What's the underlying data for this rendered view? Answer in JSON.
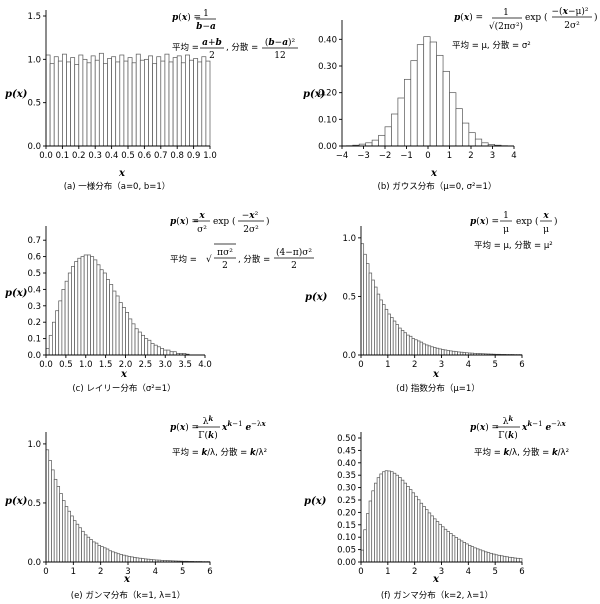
{
  "chart_data": [
    {
      "id": "a",
      "type": "bar",
      "ylabel": "p(x)",
      "xlabel": "x",
      "caption": "(a) 一様分布（a=0,  b=1）",
      "xlim": [
        0,
        1
      ],
      "ylim": [
        0,
        1.5
      ],
      "xticks": [
        "0.0",
        "0.1",
        "0.2",
        "0.3",
        "0.4",
        "0.5",
        "0.6",
        "0.7",
        "0.8",
        "0.9",
        "1.0"
      ],
      "yticks": [
        "0.0",
        "0.5",
        "1.0",
        "1.5"
      ],
      "formula": {
        "pdf": "p(x) = 1 / (b−a)",
        "mean_label": "平均",
        "mean": "(a+b)/2",
        "var_label": "分散",
        "var": "(b−a)²/12"
      },
      "x": [
        0.0125,
        0.0375,
        0.0625,
        0.0875,
        0.1125,
        0.1375,
        0.1625,
        0.1875,
        0.2125,
        0.2375,
        0.2625,
        0.2875,
        0.3125,
        0.3375,
        0.3625,
        0.3875,
        0.4125,
        0.4375,
        0.4625,
        0.4875,
        0.5125,
        0.5375,
        0.5625,
        0.5875,
        0.6125,
        0.6375,
        0.6625,
        0.6875,
        0.7125,
        0.7375,
        0.7625,
        0.7875,
        0.8125,
        0.8375,
        0.8625,
        0.8875,
        0.9125,
        0.9375,
        0.9625,
        0.9875
      ],
      "values": [
        1.05,
        0.95,
        1.03,
        0.98,
        1.06,
        0.97,
        1.02,
        0.94,
        1.05,
        1.0,
        0.96,
        1.04,
        0.99,
        1.07,
        0.95,
        1.01,
        1.03,
        0.97,
        1.05,
        0.98,
        1.02,
        0.96,
        1.06,
        0.99,
        1.0,
        1.04,
        0.95,
        1.03,
        0.98,
        1.06,
        0.97,
        1.02,
        1.04,
        0.96,
        1.05,
        0.99,
        1.01,
        0.97,
        1.03,
        0.98
      ]
    },
    {
      "id": "b",
      "type": "bar",
      "ylabel": "p(x)",
      "xlabel": "x",
      "caption": "(b) ガウス分布（μ=0,  σ²=1）",
      "xlim": [
        -4,
        4
      ],
      "ylim": [
        0,
        0.45
      ],
      "xticks": [
        "−4",
        "−3",
        "−2",
        "−1",
        "0",
        "1",
        "2",
        "3",
        "4"
      ],
      "yticks": [
        "0.00",
        "0.10",
        "0.20",
        "0.30",
        "0.40"
      ],
      "formula": {
        "pdf": "p(x) = 1/√(2πσ²) exp(−(x−μ)²/(2σ²))",
        "mean_label": "平均",
        "mean": "μ",
        "var_label": "分散",
        "var": "σ²"
      },
      "x": [
        -3.65,
        -3.35,
        -3.05,
        -2.75,
        -2.45,
        -2.15,
        -1.85,
        -1.55,
        -1.25,
        -0.95,
        -0.65,
        -0.35,
        -0.05,
        0.25,
        0.55,
        0.85,
        1.15,
        1.45,
        1.75,
        2.05,
        2.35,
        2.65,
        2.95,
        3.25,
        3.55
      ],
      "values": [
        0.001,
        0.003,
        0.007,
        0.012,
        0.022,
        0.04,
        0.072,
        0.12,
        0.18,
        0.25,
        0.32,
        0.38,
        0.41,
        0.39,
        0.34,
        0.28,
        0.2,
        0.14,
        0.086,
        0.05,
        0.026,
        0.012,
        0.006,
        0.003,
        0.001
      ]
    },
    {
      "id": "c",
      "type": "bar",
      "ylabel": "p(x)",
      "xlabel": "x",
      "caption": "(c) レイリー分布（σ²=1）",
      "xlim": [
        0,
        4
      ],
      "ylim": [
        0,
        0.75
      ],
      "xticks": [
        "0.0",
        "0.5",
        "1.0",
        "1.5",
        "2.0",
        "2.5",
        "3.0",
        "3.5",
        "4.0"
      ],
      "yticks": [
        "0.0",
        "0.1",
        "0.2",
        "0.3",
        "0.4",
        "0.5",
        "0.6",
        "0.7"
      ],
      "formula": {
        "pdf": "p(x) = x/σ² exp(−x²/(2σ²))",
        "mean_label": "平均",
        "mean": "√(πσ²/2)",
        "var_label": "分散",
        "var": "(4−π)σ²/2"
      },
      "x": [
        0.04,
        0.12,
        0.2,
        0.28,
        0.36,
        0.44,
        0.52,
        0.6,
        0.68,
        0.76,
        0.84,
        0.92,
        1.0,
        1.08,
        1.16,
        1.24,
        1.32,
        1.4,
        1.48,
        1.56,
        1.64,
        1.72,
        1.8,
        1.88,
        1.96,
        2.04,
        2.12,
        2.2,
        2.28,
        2.36,
        2.44,
        2.52,
        2.6,
        2.68,
        2.76,
        2.84,
        2.92,
        3.0,
        3.08,
        3.16,
        3.24,
        3.32,
        3.4,
        3.48,
        3.56
      ],
      "values": [
        0.04,
        0.12,
        0.2,
        0.27,
        0.33,
        0.4,
        0.45,
        0.5,
        0.54,
        0.57,
        0.59,
        0.6,
        0.61,
        0.61,
        0.6,
        0.58,
        0.55,
        0.52,
        0.5,
        0.46,
        0.43,
        0.39,
        0.36,
        0.32,
        0.29,
        0.26,
        0.22,
        0.19,
        0.16,
        0.14,
        0.12,
        0.1,
        0.09,
        0.07,
        0.06,
        0.05,
        0.04,
        0.03,
        0.03,
        0.02,
        0.02,
        0.01,
        0.01,
        0.01,
        0.005
      ]
    },
    {
      "id": "d",
      "type": "bar",
      "ylabel": "p(x)",
      "xlabel": "x",
      "caption": "(d) 指数分布（μ=1）",
      "xlim": [
        0,
        6
      ],
      "ylim": [
        0,
        1.05
      ],
      "xticks": [
        "0",
        "1",
        "2",
        "3",
        "4",
        "5",
        "6"
      ],
      "yticks": [
        "0.0",
        "0.5",
        "1.0"
      ],
      "formula": {
        "pdf": "p(x) = 1/μ exp(x/μ)",
        "mean_label": "平均",
        "mean": "μ",
        "var_label": "分散",
        "var": "μ²"
      },
      "x": [
        0.05,
        0.15,
        0.25,
        0.35,
        0.45,
        0.55,
        0.65,
        0.75,
        0.85,
        0.95,
        1.05,
        1.15,
        1.25,
        1.35,
        1.45,
        1.55,
        1.65,
        1.75,
        1.85,
        1.95,
        2.05,
        2.15,
        2.25,
        2.35,
        2.45,
        2.55,
        2.65,
        2.75,
        2.85,
        2.95,
        3.05,
        3.15,
        3.25,
        3.35,
        3.45,
        3.55,
        3.65,
        3.75,
        3.85,
        3.95,
        4.05,
        4.15,
        4.25,
        4.35,
        4.45,
        4.55,
        4.65,
        4.75,
        4.85,
        4.95,
        5.05,
        5.15,
        5.25,
        5.35,
        5.45,
        5.55,
        5.65,
        5.75,
        5.85,
        5.95
      ],
      "values": [
        0.95,
        0.86,
        0.78,
        0.7,
        0.64,
        0.58,
        0.52,
        0.47,
        0.43,
        0.39,
        0.35,
        0.32,
        0.29,
        0.26,
        0.23,
        0.21,
        0.19,
        0.17,
        0.16,
        0.14,
        0.13,
        0.12,
        0.11,
        0.095,
        0.086,
        0.078,
        0.07,
        0.064,
        0.058,
        0.052,
        0.047,
        0.043,
        0.039,
        0.035,
        0.032,
        0.029,
        0.026,
        0.024,
        0.021,
        0.019,
        0.017,
        0.016,
        0.014,
        0.013,
        0.012,
        0.011,
        0.01,
        0.009,
        0.008,
        0.007,
        0.006,
        0.006,
        0.005,
        0.005,
        0.004,
        0.004,
        0.004,
        0.003,
        0.003,
        0.003
      ]
    },
    {
      "id": "e",
      "type": "bar",
      "ylabel": "p(x)",
      "xlabel": "x",
      "caption": "(e) ガンマ分布（k=1,  λ=1）",
      "xlim": [
        0,
        6
      ],
      "ylim": [
        0,
        1.05
      ],
      "xticks": [
        "0",
        "1",
        "2",
        "3",
        "4",
        "5",
        "6"
      ],
      "yticks": [
        "0.0",
        "0.5",
        "1.0"
      ],
      "formula": {
        "pdf": "p(x) = λᵏ/Γ(k) xᵏ⁻¹ e⁻λˣ",
        "mean_label": "平均",
        "mean": "k/λ",
        "var_label": "分散",
        "var": "k/λ²"
      },
      "x": [
        0.05,
        0.15,
        0.25,
        0.35,
        0.45,
        0.55,
        0.65,
        0.75,
        0.85,
        0.95,
        1.05,
        1.15,
        1.25,
        1.35,
        1.45,
        1.55,
        1.65,
        1.75,
        1.85,
        1.95,
        2.05,
        2.15,
        2.25,
        2.35,
        2.45,
        2.55,
        2.65,
        2.75,
        2.85,
        2.95,
        3.05,
        3.15,
        3.25,
        3.35,
        3.45,
        3.55,
        3.65,
        3.75,
        3.85,
        3.95,
        4.05,
        4.15,
        4.25,
        4.35,
        4.45,
        4.55,
        4.65,
        4.75,
        4.85,
        4.95,
        5.05,
        5.15,
        5.25,
        5.35,
        5.45,
        5.55,
        5.65,
        5.75,
        5.85,
        5.95
      ],
      "values": [
        0.95,
        0.86,
        0.78,
        0.7,
        0.64,
        0.58,
        0.52,
        0.47,
        0.43,
        0.39,
        0.35,
        0.32,
        0.29,
        0.26,
        0.23,
        0.21,
        0.19,
        0.17,
        0.16,
        0.14,
        0.13,
        0.12,
        0.11,
        0.095,
        0.086,
        0.078,
        0.07,
        0.064,
        0.058,
        0.052,
        0.047,
        0.043,
        0.039,
        0.035,
        0.032,
        0.029,
        0.026,
        0.024,
        0.021,
        0.019,
        0.017,
        0.016,
        0.014,
        0.013,
        0.012,
        0.011,
        0.01,
        0.009,
        0.008,
        0.007,
        0.006,
        0.006,
        0.005,
        0.005,
        0.004,
        0.004,
        0.004,
        0.003,
        0.003,
        0.003
      ]
    },
    {
      "id": "f",
      "type": "bar",
      "ylabel": "p(x)",
      "xlabel": "x",
      "caption": "(f) ガンマ分布（k=2,  λ=1）",
      "xlim": [
        0,
        6
      ],
      "ylim": [
        0,
        0.5
      ],
      "xticks": [
        "0",
        "1",
        "2",
        "3",
        "4",
        "5",
        "6"
      ],
      "yticks": [
        "0.00",
        "0.05",
        "0.10",
        "0.15",
        "0.20",
        "0.25",
        "0.30",
        "0.35",
        "0.40",
        "0.45",
        "0.50"
      ],
      "formula": {
        "pdf": "p(x) = λᵏ/Γ(k) xᵏ⁻¹ e⁻λˣ",
        "mean_label": "平均",
        "mean": "k/λ",
        "var_label": "分散",
        "var": "k/λ²"
      },
      "x": [
        0.05,
        0.15,
        0.25,
        0.35,
        0.45,
        0.55,
        0.65,
        0.75,
        0.85,
        0.95,
        1.05,
        1.15,
        1.25,
        1.35,
        1.45,
        1.55,
        1.65,
        1.75,
        1.85,
        1.95,
        2.05,
        2.15,
        2.25,
        2.35,
        2.45,
        2.55,
        2.65,
        2.75,
        2.85,
        2.95,
        3.05,
        3.15,
        3.25,
        3.35,
        3.45,
        3.55,
        3.65,
        3.75,
        3.85,
        3.95,
        4.05,
        4.15,
        4.25,
        4.35,
        4.45,
        4.55,
        4.65,
        4.75,
        4.85,
        4.95,
        5.05,
        5.15,
        5.25,
        5.35,
        5.45,
        5.55,
        5.65,
        5.75,
        5.85,
        5.95
      ],
      "values": [
        0.048,
        0.13,
        0.195,
        0.246,
        0.287,
        0.318,
        0.34,
        0.355,
        0.364,
        0.368,
        0.367,
        0.364,
        0.358,
        0.35,
        0.341,
        0.33,
        0.318,
        0.305,
        0.292,
        0.279,
        0.265,
        0.251,
        0.237,
        0.224,
        0.211,
        0.198,
        0.186,
        0.174,
        0.163,
        0.152,
        0.142,
        0.132,
        0.123,
        0.115,
        0.106,
        0.099,
        0.092,
        0.085,
        0.079,
        0.073,
        0.067,
        0.062,
        0.057,
        0.053,
        0.049,
        0.045,
        0.041,
        0.038,
        0.035,
        0.032,
        0.029,
        0.027,
        0.025,
        0.023,
        0.021,
        0.019,
        0.018,
        0.016,
        0.015,
        0.014
      ]
    }
  ]
}
